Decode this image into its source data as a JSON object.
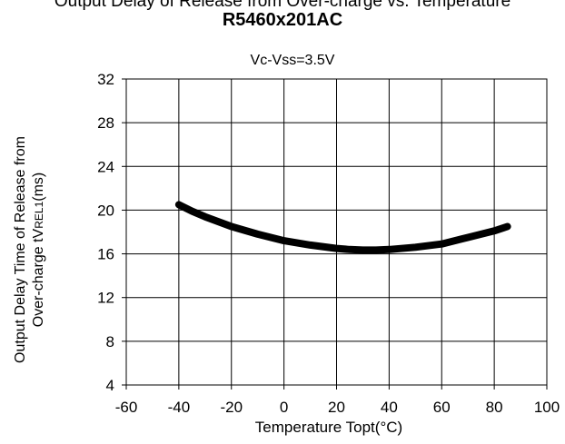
{
  "header": {
    "partial_title": "Output Delay of Release from Over-charge vs. Temperature",
    "title": "R5460x201AC"
  },
  "chart_data": {
    "type": "line",
    "subtitle": "Vc-Vss=3.5V",
    "xlabel": "Temperature Topt(°C)",
    "ylabel_line1": "Output Delay Time of  Release from",
    "ylabel_line2_prefix": "Over-charge tV",
    "ylabel_line2_sub": "REL1",
    "ylabel_line2_suffix": "(ms)",
    "xlim": [
      -60,
      100
    ],
    "ylim": [
      4,
      32
    ],
    "xticks": [
      -60,
      -40,
      -20,
      0,
      20,
      40,
      60,
      80,
      100
    ],
    "yticks": [
      4,
      8,
      12,
      16,
      20,
      24,
      28,
      32
    ],
    "grid": true,
    "series": [
      {
        "color": "#000000",
        "x": [
          -40,
          -35,
          -30,
          -20,
          -10,
          0,
          10,
          20,
          25,
          30,
          35,
          40,
          50,
          60,
          70,
          80,
          85
        ],
        "y": [
          20.5,
          19.9,
          19.4,
          18.5,
          17.8,
          17.2,
          16.8,
          16.5,
          16.4,
          16.35,
          16.35,
          16.4,
          16.6,
          16.9,
          17.5,
          18.1,
          18.5
        ]
      }
    ]
  }
}
